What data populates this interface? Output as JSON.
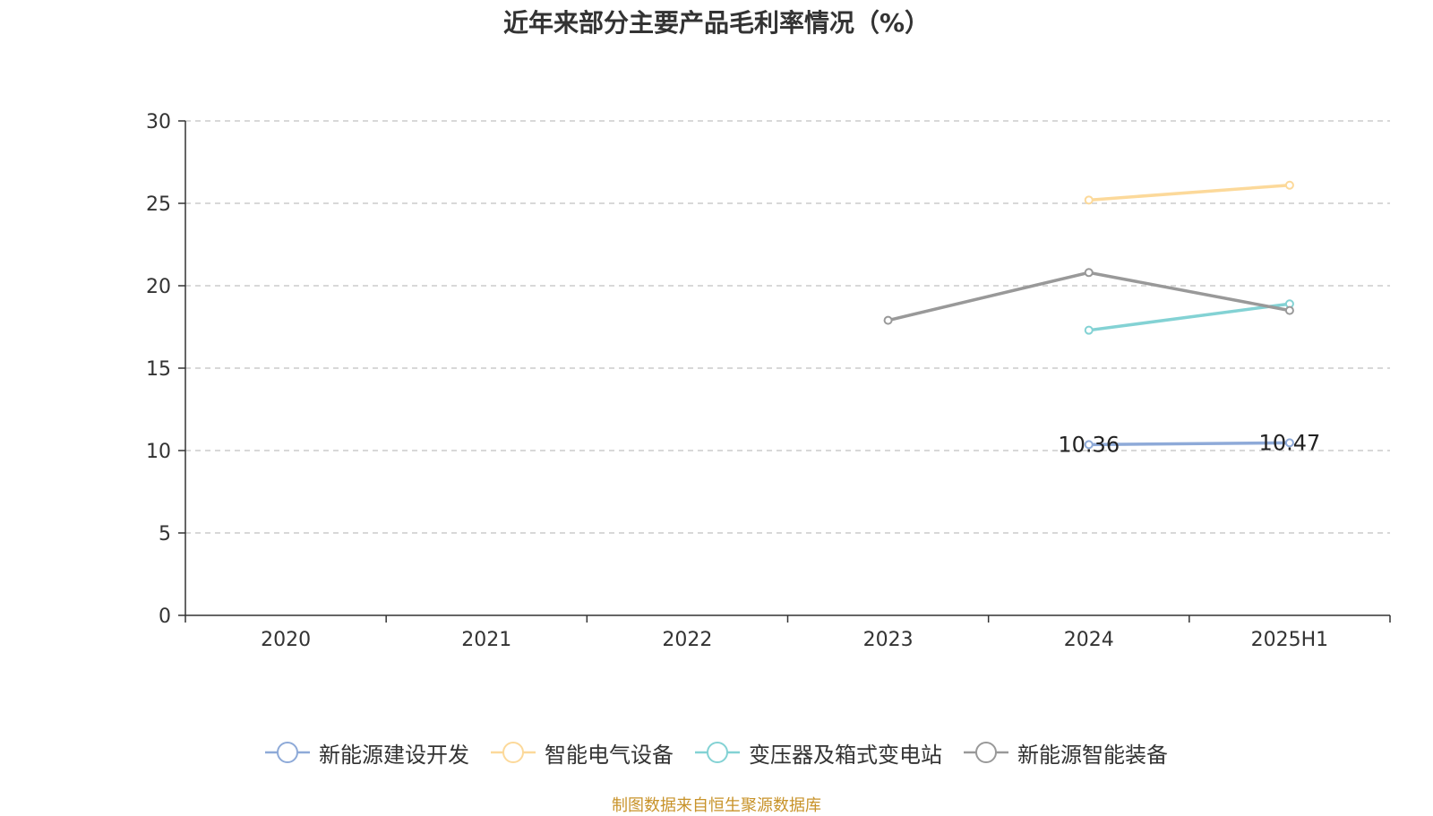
{
  "chart_data": {
    "type": "line",
    "title": "近年来部分主要产品毛利率情况（%）",
    "categories": [
      "2020",
      "2021",
      "2022",
      "2023",
      "2024",
      "2025H1"
    ],
    "ylim": [
      0,
      30
    ],
    "yticks": [
      0,
      5,
      10,
      15,
      20,
      25,
      30
    ],
    "grid": true,
    "legend_position": "bottom",
    "series": [
      {
        "name": "新能源建设开发",
        "color": "#8eaad8",
        "values": [
          null,
          null,
          null,
          null,
          10.36,
          10.47
        ],
        "labels": [
          null,
          null,
          null,
          null,
          "10.36",
          "10.47"
        ]
      },
      {
        "name": "智能电气设备",
        "color": "#fcd99a",
        "values": [
          null,
          null,
          null,
          null,
          25.2,
          26.1
        ],
        "labels": [
          null,
          null,
          null,
          null,
          null,
          null
        ]
      },
      {
        "name": "变压器及箱式变电站",
        "color": "#83d2d4",
        "values": [
          null,
          null,
          null,
          null,
          17.3,
          18.9
        ],
        "labels": [
          null,
          null,
          null,
          null,
          null,
          null
        ]
      },
      {
        "name": "新能源智能装备",
        "color": "#999999",
        "values": [
          null,
          null,
          null,
          17.9,
          20.8,
          18.5
        ],
        "labels": [
          null,
          null,
          null,
          null,
          null,
          null
        ]
      }
    ]
  },
  "source_note": "制图数据来自恒生聚源数据库"
}
